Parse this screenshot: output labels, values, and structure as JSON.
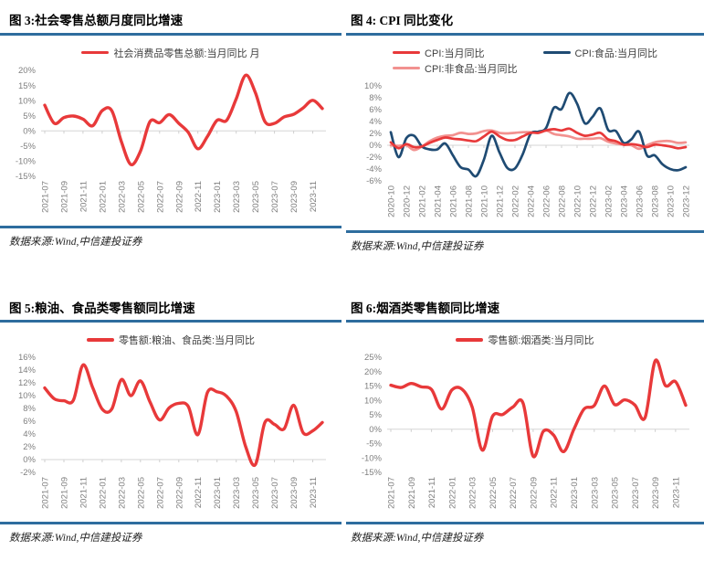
{
  "report": {
    "accent_rule_color": "#2e6d9e",
    "axis_line_color": "#d6d6d6",
    "axis_text_color": "#7f7f7f"
  },
  "chart_data": [
    {
      "id": "figure-3",
      "type": "line",
      "title": "图 3:社会零售总额月度同比增速",
      "source": "数据来源:Wind,中信建投证券",
      "unit": "%",
      "grid": false,
      "legend_position": "top-center",
      "xtick_every": 2,
      "ylim": [
        -15,
        20
      ],
      "yticks": [
        20,
        15,
        10,
        5,
        0,
        -5,
        -10,
        -15
      ],
      "ytick_labels": [
        "20%",
        "15%",
        "10%",
        "5%",
        "0%",
        "-5%",
        "-10%",
        "-15%"
      ],
      "x": [
        "2021-07",
        "2021-08",
        "2021-09",
        "2021-10",
        "2021-11",
        "2021-12",
        "2022-01",
        "2022-02",
        "2022-03",
        "2022-04",
        "2022-05",
        "2022-06",
        "2022-07",
        "2022-08",
        "2022-09",
        "2022-10",
        "2022-11",
        "2022-12",
        "2023-01",
        "2023-02",
        "2023-03",
        "2023-04",
        "2023-05",
        "2023-06",
        "2023-07",
        "2023-08",
        "2023-09",
        "2023-10",
        "2023-11",
        "2023-12"
      ],
      "series": [
        {
          "name": "社会消费品零售总额:当月同比 月",
          "color": "#e8393a",
          "values": [
            8.5,
            2.5,
            4.4,
            4.9,
            3.9,
            1.7,
            6.7,
            6.7,
            -3.5,
            -11.1,
            -6.7,
            3.1,
            2.7,
            5.4,
            2.5,
            -0.5,
            -5.9,
            -1.8,
            3.5,
            3.5,
            10.6,
            18.4,
            12.7,
            3.1,
            2.5,
            4.6,
            5.5,
            7.6,
            10.1,
            7.4
          ]
        }
      ]
    },
    {
      "id": "figure-4",
      "type": "line",
      "title": "图 4: CPI 同比变化",
      "source": "数据来源:Wind,中信建投证券",
      "unit": "%",
      "grid": false,
      "legend_position": "top-center",
      "xtick_every": 2,
      "ylim": [
        -6,
        10
      ],
      "yticks": [
        10,
        8,
        6,
        4,
        2,
        0,
        -2,
        -4,
        -6
      ],
      "ytick_labels": [
        "10%",
        "8%",
        "6%",
        "4%",
        "2%",
        "0%",
        "-2%",
        "-4%",
        "-6%"
      ],
      "x": [
        "2020-10",
        "2020-11",
        "2020-12",
        "2021-01",
        "2021-02",
        "2021-03",
        "2021-04",
        "2021-05",
        "2021-06",
        "2021-07",
        "2021-08",
        "2021-09",
        "2021-10",
        "2021-11",
        "2021-12",
        "2022-01",
        "2022-02",
        "2022-03",
        "2022-04",
        "2022-05",
        "2022-06",
        "2022-07",
        "2022-08",
        "2022-09",
        "2022-10",
        "2022-11",
        "2022-12",
        "2023-01",
        "2023-02",
        "2023-03",
        "2023-04",
        "2023-05",
        "2023-06",
        "2023-07",
        "2023-08",
        "2023-09",
        "2023-10",
        "2023-11",
        "2023-12"
      ],
      "series": [
        {
          "name": "CPI:当月同比",
          "color": "#e8393a",
          "values": [
            0.5,
            -0.5,
            0.2,
            -0.3,
            -0.2,
            0.4,
            0.9,
            1.3,
            1.1,
            1.0,
            0.8,
            0.7,
            1.5,
            2.3,
            1.5,
            0.9,
            0.9,
            1.5,
            2.1,
            2.1,
            2.5,
            2.7,
            2.5,
            2.8,
            2.1,
            1.6,
            1.8,
            2.1,
            1.0,
            0.7,
            0.1,
            0.2,
            0.0,
            -0.3,
            0.1,
            0.0,
            -0.2,
            -0.5,
            -0.3
          ]
        },
        {
          "name": "CPI:食品:当月同比",
          "color": "#1f4b73",
          "values": [
            2.2,
            -2.0,
            1.2,
            1.6,
            -0.2,
            -0.7,
            -0.7,
            0.3,
            -1.7,
            -3.7,
            -4.1,
            -5.2,
            -2.4,
            1.6,
            -1.2,
            -3.8,
            -3.9,
            -1.5,
            1.9,
            2.3,
            2.9,
            6.3,
            6.1,
            8.8,
            7.0,
            3.7,
            4.8,
            6.2,
            2.6,
            2.4,
            0.4,
            1.0,
            2.3,
            -1.7,
            -1.7,
            -3.2,
            -4.0,
            -4.2,
            -3.7
          ]
        },
        {
          "name": "CPI:非食品:当月同比",
          "color": "#f2918f",
          "values": [
            0.0,
            -0.1,
            0.0,
            -0.8,
            -0.2,
            0.7,
            1.3,
            1.6,
            1.7,
            2.1,
            1.9,
            2.0,
            2.4,
            2.5,
            2.1,
            2.0,
            2.1,
            2.2,
            2.2,
            2.1,
            2.5,
            1.9,
            1.7,
            1.5,
            1.1,
            1.1,
            1.1,
            1.2,
            0.6,
            0.3,
            0.1,
            0.0,
            -0.6,
            0.0,
            0.5,
            0.7,
            0.7,
            0.4,
            0.5
          ]
        }
      ]
    },
    {
      "id": "figure-5",
      "type": "line",
      "title": "图 5:粮油、食品类零售额同比增速",
      "source": "数据来源:Wind,中信建投证券",
      "unit": "%",
      "grid": false,
      "legend_position": "top-center",
      "xtick_every": 2,
      "ylim": [
        -2,
        16
      ],
      "yticks": [
        16,
        14,
        12,
        10,
        8,
        6,
        4,
        2,
        0,
        -2
      ],
      "ytick_labels": [
        "16%",
        "14%",
        "12%",
        "10%",
        "8%",
        "6%",
        "4%",
        "2%",
        "0%",
        "-2%"
      ],
      "x": [
        "2021-07",
        "2021-08",
        "2021-09",
        "2021-10",
        "2021-11",
        "2021-12",
        "2022-01",
        "2022-02",
        "2022-03",
        "2022-04",
        "2022-05",
        "2022-06",
        "2022-07",
        "2022-08",
        "2022-09",
        "2022-10",
        "2022-11",
        "2022-12",
        "2023-01",
        "2023-02",
        "2023-03",
        "2023-04",
        "2023-05",
        "2023-06",
        "2023-07",
        "2023-08",
        "2023-09",
        "2023-10",
        "2023-11",
        "2023-12"
      ],
      "series": [
        {
          "name": "零售额:粮油、食品类:当月同比",
          "color": "#e8393a",
          "values": [
            11.2,
            9.5,
            9.2,
            9.3,
            14.8,
            11.3,
            7.9,
            7.9,
            12.5,
            10.0,
            12.3,
            9.0,
            6.2,
            8.1,
            8.8,
            8.3,
            3.9,
            10.5,
            10.6,
            9.9,
            7.5,
            2.0,
            -0.8,
            5.8,
            5.5,
            4.8,
            8.5,
            4.2,
            4.5,
            5.8
          ]
        }
      ]
    },
    {
      "id": "figure-6",
      "type": "line",
      "title": "图 6:烟酒类零售额同比增速",
      "source": "数据来源:Wind,中信建投证券",
      "unit": "%",
      "grid": false,
      "legend_position": "top-center",
      "xtick_every": 2,
      "ylim": [
        -15,
        25
      ],
      "yticks": [
        25,
        20,
        15,
        10,
        5,
        0,
        -5,
        -10,
        -15
      ],
      "ytick_labels": [
        "25%",
        "20%",
        "15%",
        "10%",
        "5%",
        "0%",
        "-5%",
        "-10%",
        "-15%"
      ],
      "x": [
        "2021-07",
        "2021-08",
        "2021-09",
        "2021-10",
        "2021-11",
        "2021-12",
        "2022-01",
        "2022-02",
        "2022-03",
        "2022-04",
        "2022-05",
        "2022-06",
        "2022-07",
        "2022-08",
        "2022-09",
        "2022-10",
        "2022-11",
        "2022-12",
        "2023-01",
        "2023-02",
        "2023-03",
        "2023-04",
        "2023-05",
        "2023-06",
        "2023-07",
        "2023-08",
        "2023-09",
        "2023-10",
        "2023-11",
        "2023-12"
      ],
      "series": [
        {
          "name": "零售额:烟酒类:当月同比",
          "color": "#e8393a",
          "values": [
            15.3,
            14.5,
            15.9,
            14.7,
            13.8,
            7.0,
            13.6,
            13.9,
            7.7,
            -7.3,
            4.5,
            5.1,
            7.7,
            9.1,
            -9.4,
            -0.7,
            -2.0,
            -7.8,
            0.0,
            7.0,
            8.2,
            15.0,
            8.6,
            10.2,
            8.4,
            4.0,
            23.8,
            15.2,
            16.5,
            8.3
          ]
        }
      ]
    }
  ]
}
